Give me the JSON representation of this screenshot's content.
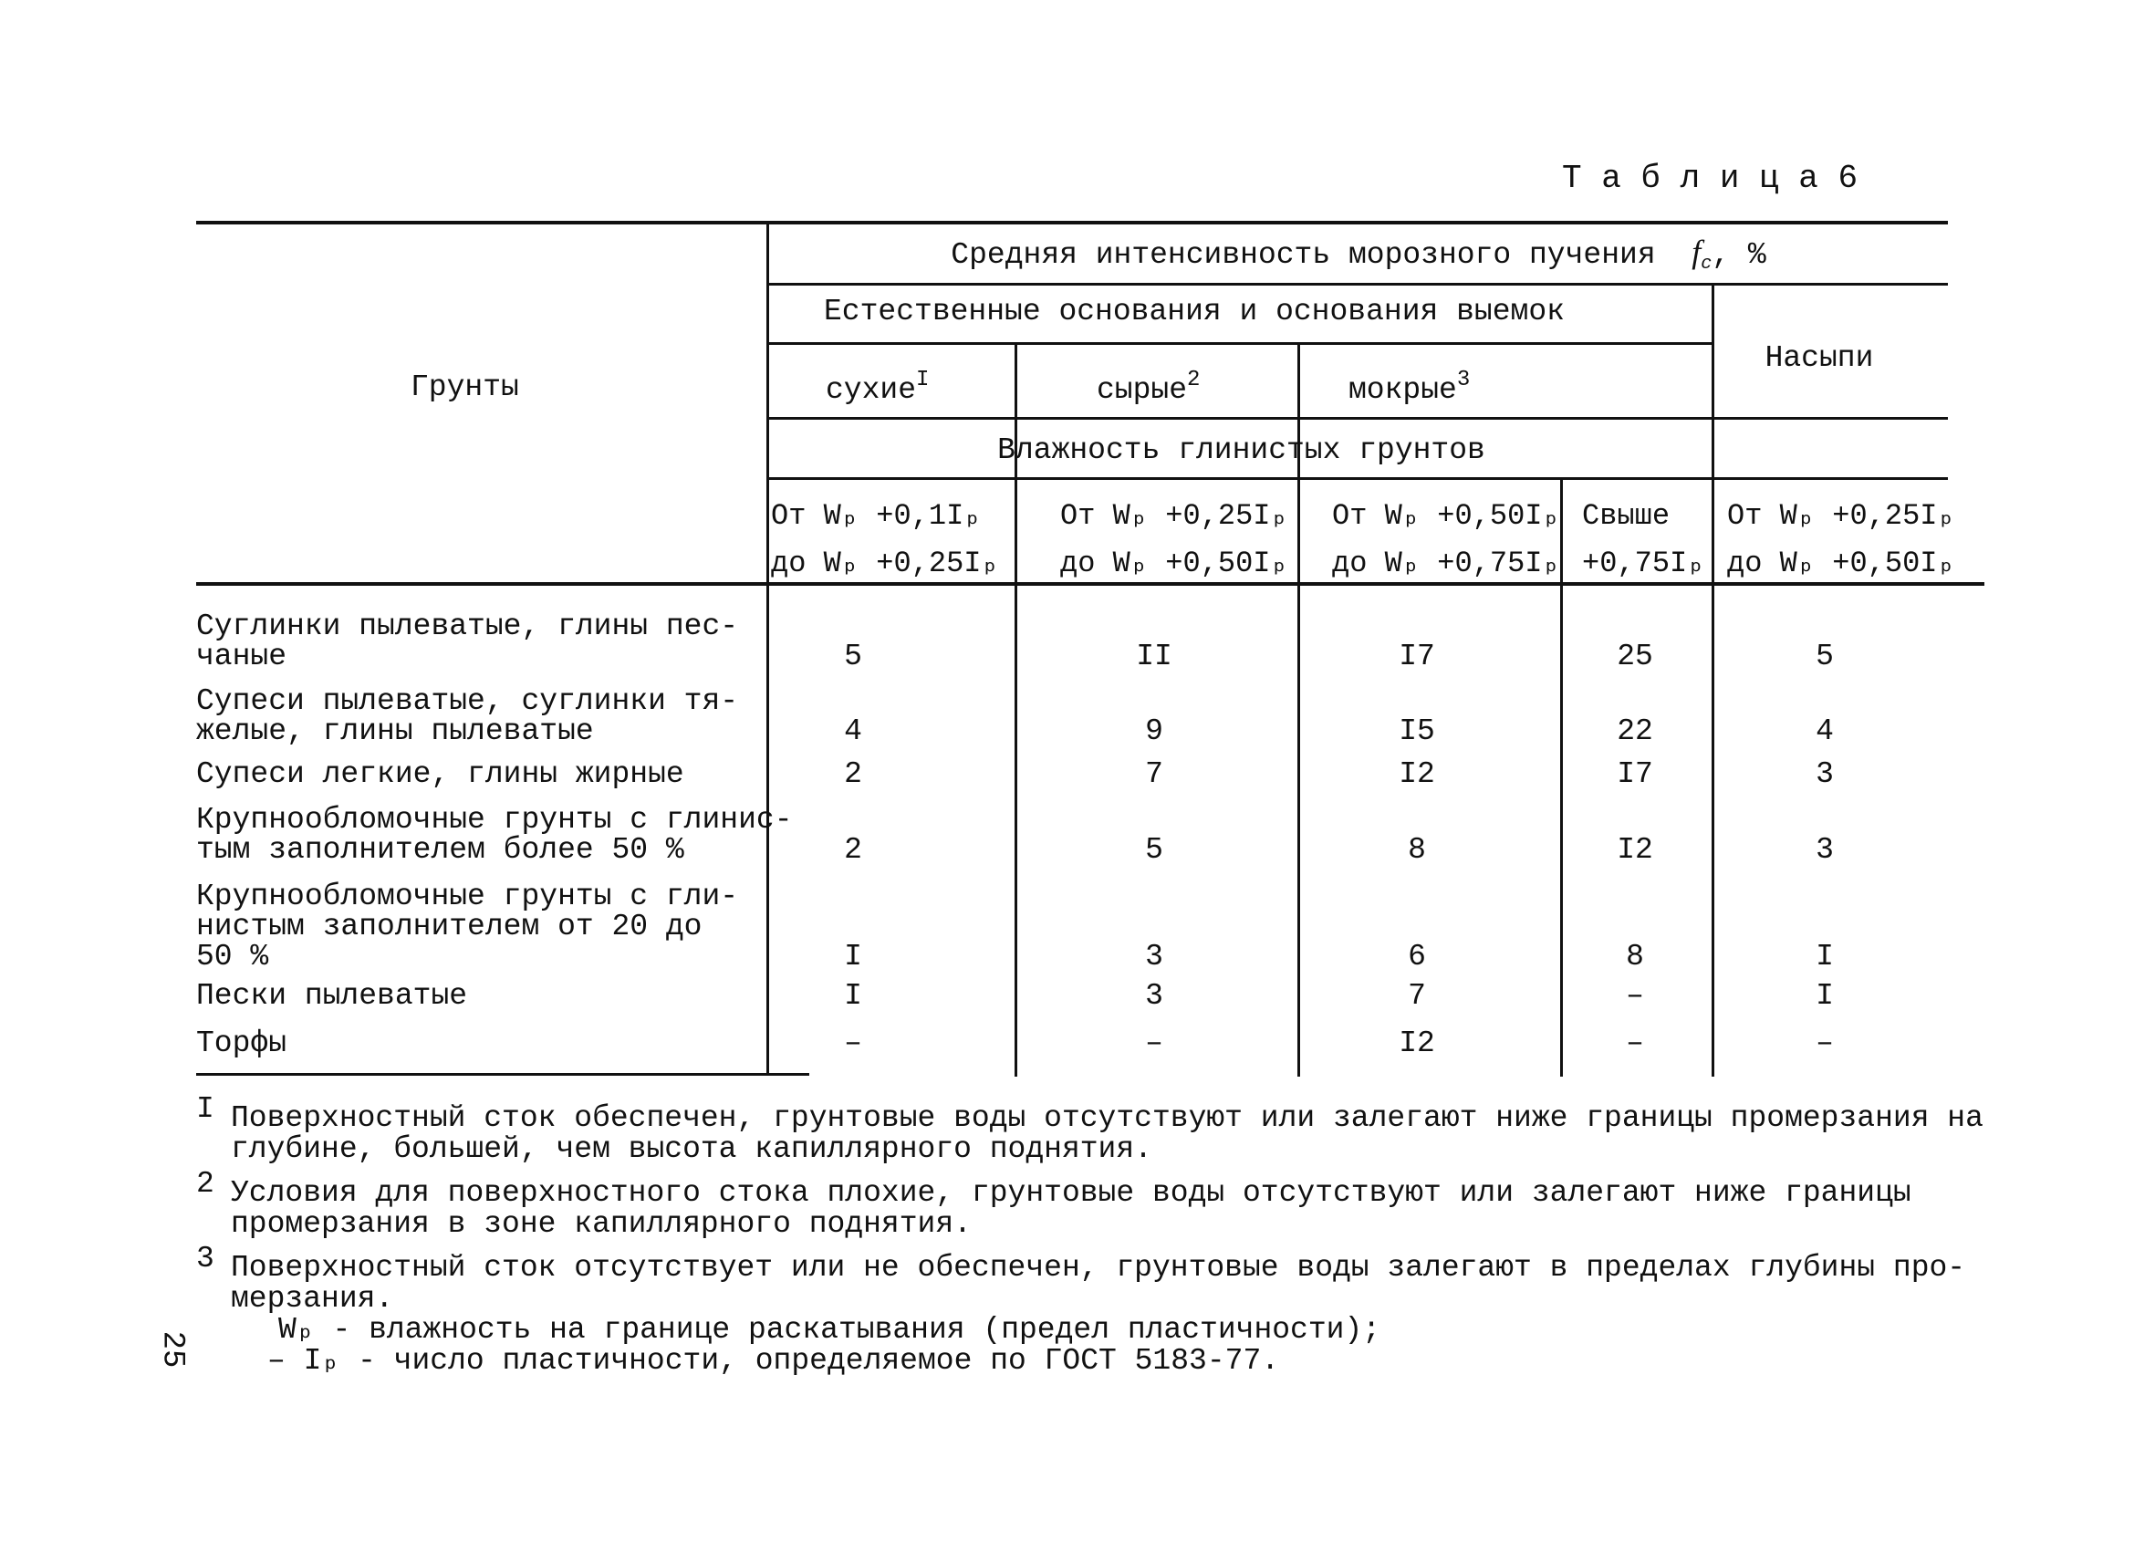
{
  "table_label": "Т а б л и ц а  6",
  "header": {
    "soils": "Грунты",
    "intensity": "Средняя интенсивность морозного пучения",
    "intensity_symbol": "f",
    "intensity_sub": "c",
    "intensity_unit": ", %",
    "natural": "Естественные основания и основания выемок",
    "fills": "Насыпи",
    "dry": "сухие",
    "dry_note": "I",
    "damp": "сырые",
    "damp_note": "2",
    "wet": "мокрые",
    "wet_note": "3",
    "moisture": "Влажность глинистых грунтов",
    "ranges": [
      {
        "l1": "От  Wₚ +0,1Iₚ",
        "l2": "до  Wₚ +0,25Iₚ"
      },
      {
        "l1": "От  Wₚ +0,25Iₚ",
        "l2": "до  Wₚ +0,50Iₚ"
      },
      {
        "l1": "От  Wₚ +0,50Iₚ",
        "l2": "до  Wₚ +0,75Iₚ"
      },
      {
        "l1": "Свыше",
        "l2": "+0,75Iₚ"
      },
      {
        "l1": "От  Wₚ +0,25Iₚ",
        "l2": "до  Wₚ +0,50Iₚ"
      }
    ]
  },
  "rows": [
    {
      "l1": "Суглинки пылеватые, глины пес-",
      "l2": "чаные",
      "l3": "",
      "v": [
        "5",
        "II",
        "I7",
        "25",
        "5"
      ]
    },
    {
      "l1": "Супеси пылеватые, суглинки тя-",
      "l2": "желые, глины пылеватые",
      "l3": "",
      "v": [
        "4",
        "9",
        "I5",
        "22",
        "4"
      ]
    },
    {
      "l1": "Супеси легкие, глины жирные",
      "l2": "",
      "l3": "",
      "v": [
        "2",
        "7",
        "I2",
        "I7",
        "3"
      ]
    },
    {
      "l1": "Крупнообломочные грунты с глинис-",
      "l2": "тым заполнителем более 50 %",
      "l3": "",
      "v": [
        "2",
        "5",
        "8",
        "I2",
        "3"
      ]
    },
    {
      "l1": "Крупнообломочные грунты с гли-",
      "l2": "нистым заполнителем от 20 до",
      "l3": "50 %",
      "v": [
        "I",
        "3",
        "6",
        "8",
        "I"
      ]
    },
    {
      "l1": "Пески пылеватые",
      "l2": "",
      "l3": "",
      "v": [
        "I",
        "3",
        "7",
        "–",
        "I"
      ]
    },
    {
      "l1": "Торфы",
      "l2": "",
      "l3": "",
      "v": [
        "–",
        "–",
        "I2",
        "–",
        "–"
      ]
    }
  ],
  "footnotes": [
    {
      "mark": "I",
      "l1": "Поверхностный сток обеспечен, грунтовые воды отсутствуют или залегают ниже границы промерзания на",
      "l2": "глубине, большей, чем высота капиллярного поднятия."
    },
    {
      "mark": "2",
      "l1": "Условия для поверхностного стока плохие, грунтовые воды отсутствуют или залегают ниже границы",
      "l2": "промерзания в зоне капиллярного поднятия."
    },
    {
      "mark": "3",
      "l1": "Поверхностный сток отсутствует или не обеспечен, грунтовые воды залегают в пределах глубины про-",
      "l2": "мерзания."
    }
  ],
  "notes": [
    "Wₚ - влажность на границе раскатывания (предел пластичности);",
    "– Iₚ - число пластичности, определяемое по ГОСТ 5183-77."
  ],
  "page_number": "25"
}
